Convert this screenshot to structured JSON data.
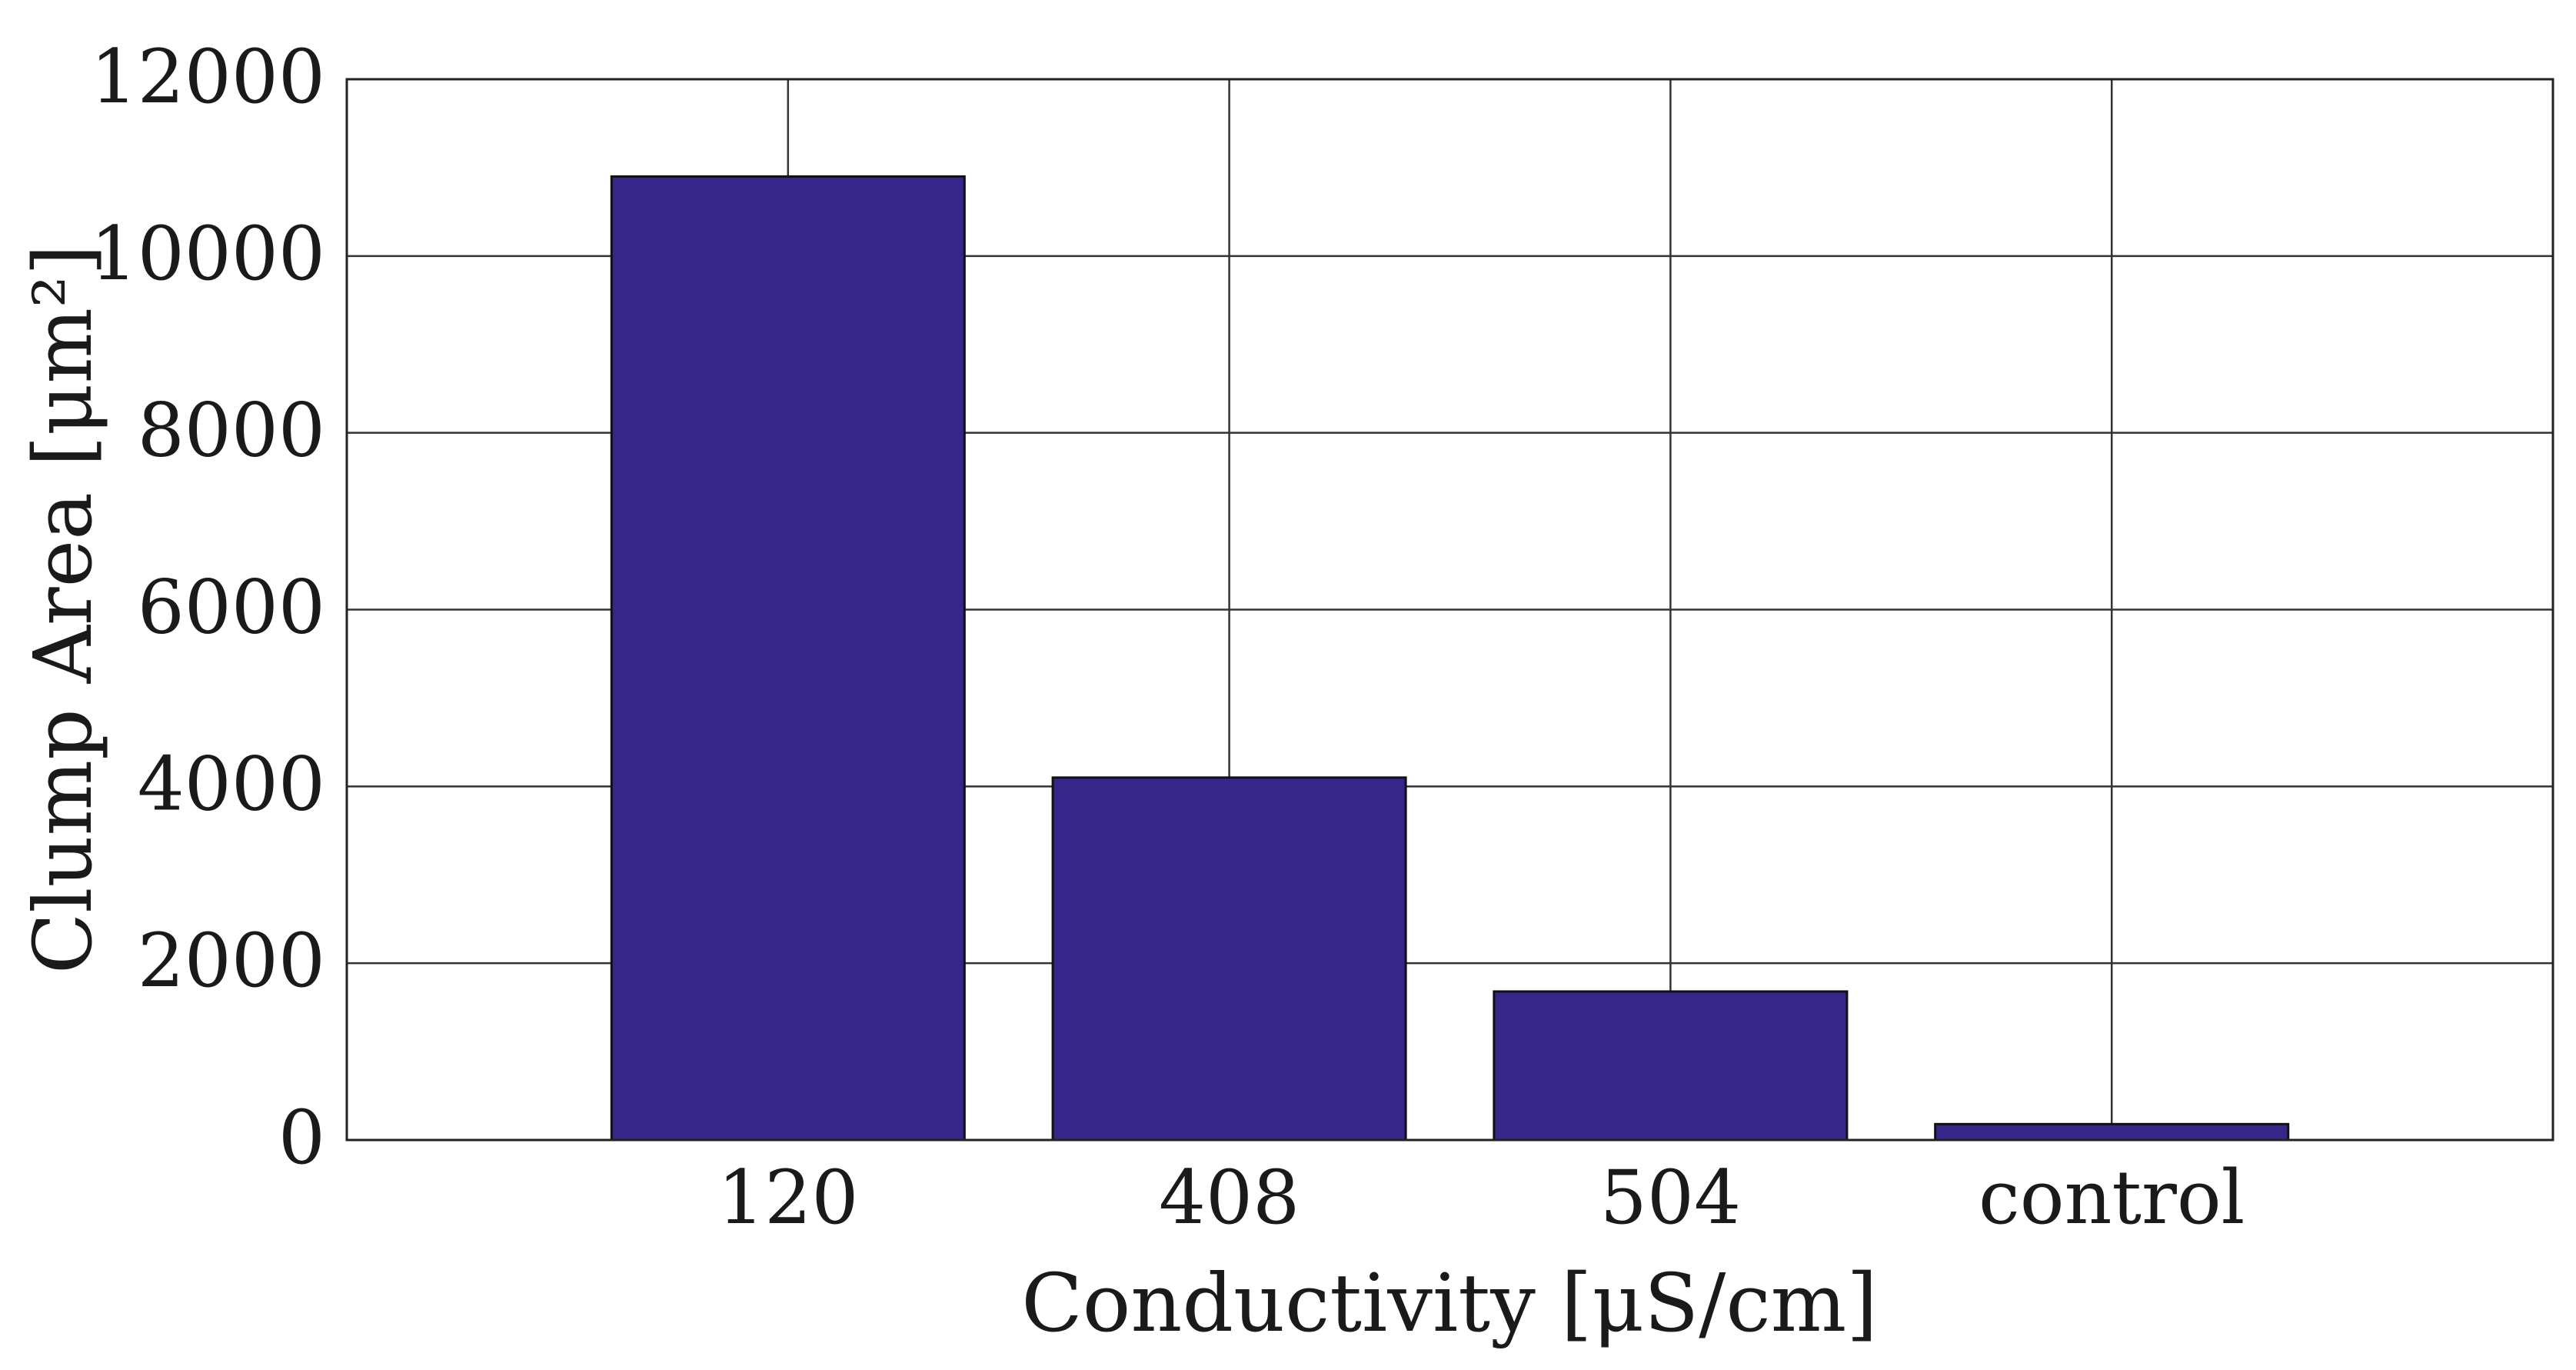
{
  "chart_data": {
    "type": "bar",
    "categories": [
      "120",
      "408",
      "504",
      "control"
    ],
    "values": [
      10900,
      4100,
      1680,
      180
    ],
    "ylim": [
      0,
      12000
    ],
    "yticks": [
      "0",
      "2000",
      "4000",
      "6000",
      "8000",
      "10000",
      "12000"
    ],
    "xlabel": "Conductivity [μS/cm]",
    "ylabel": "Clump Area [μm²]",
    "grid": true,
    "colors": {
      "bar_fill": "#36268A",
      "bar_stroke": "#111111",
      "grid": "#333333",
      "axes": "#222222"
    }
  }
}
